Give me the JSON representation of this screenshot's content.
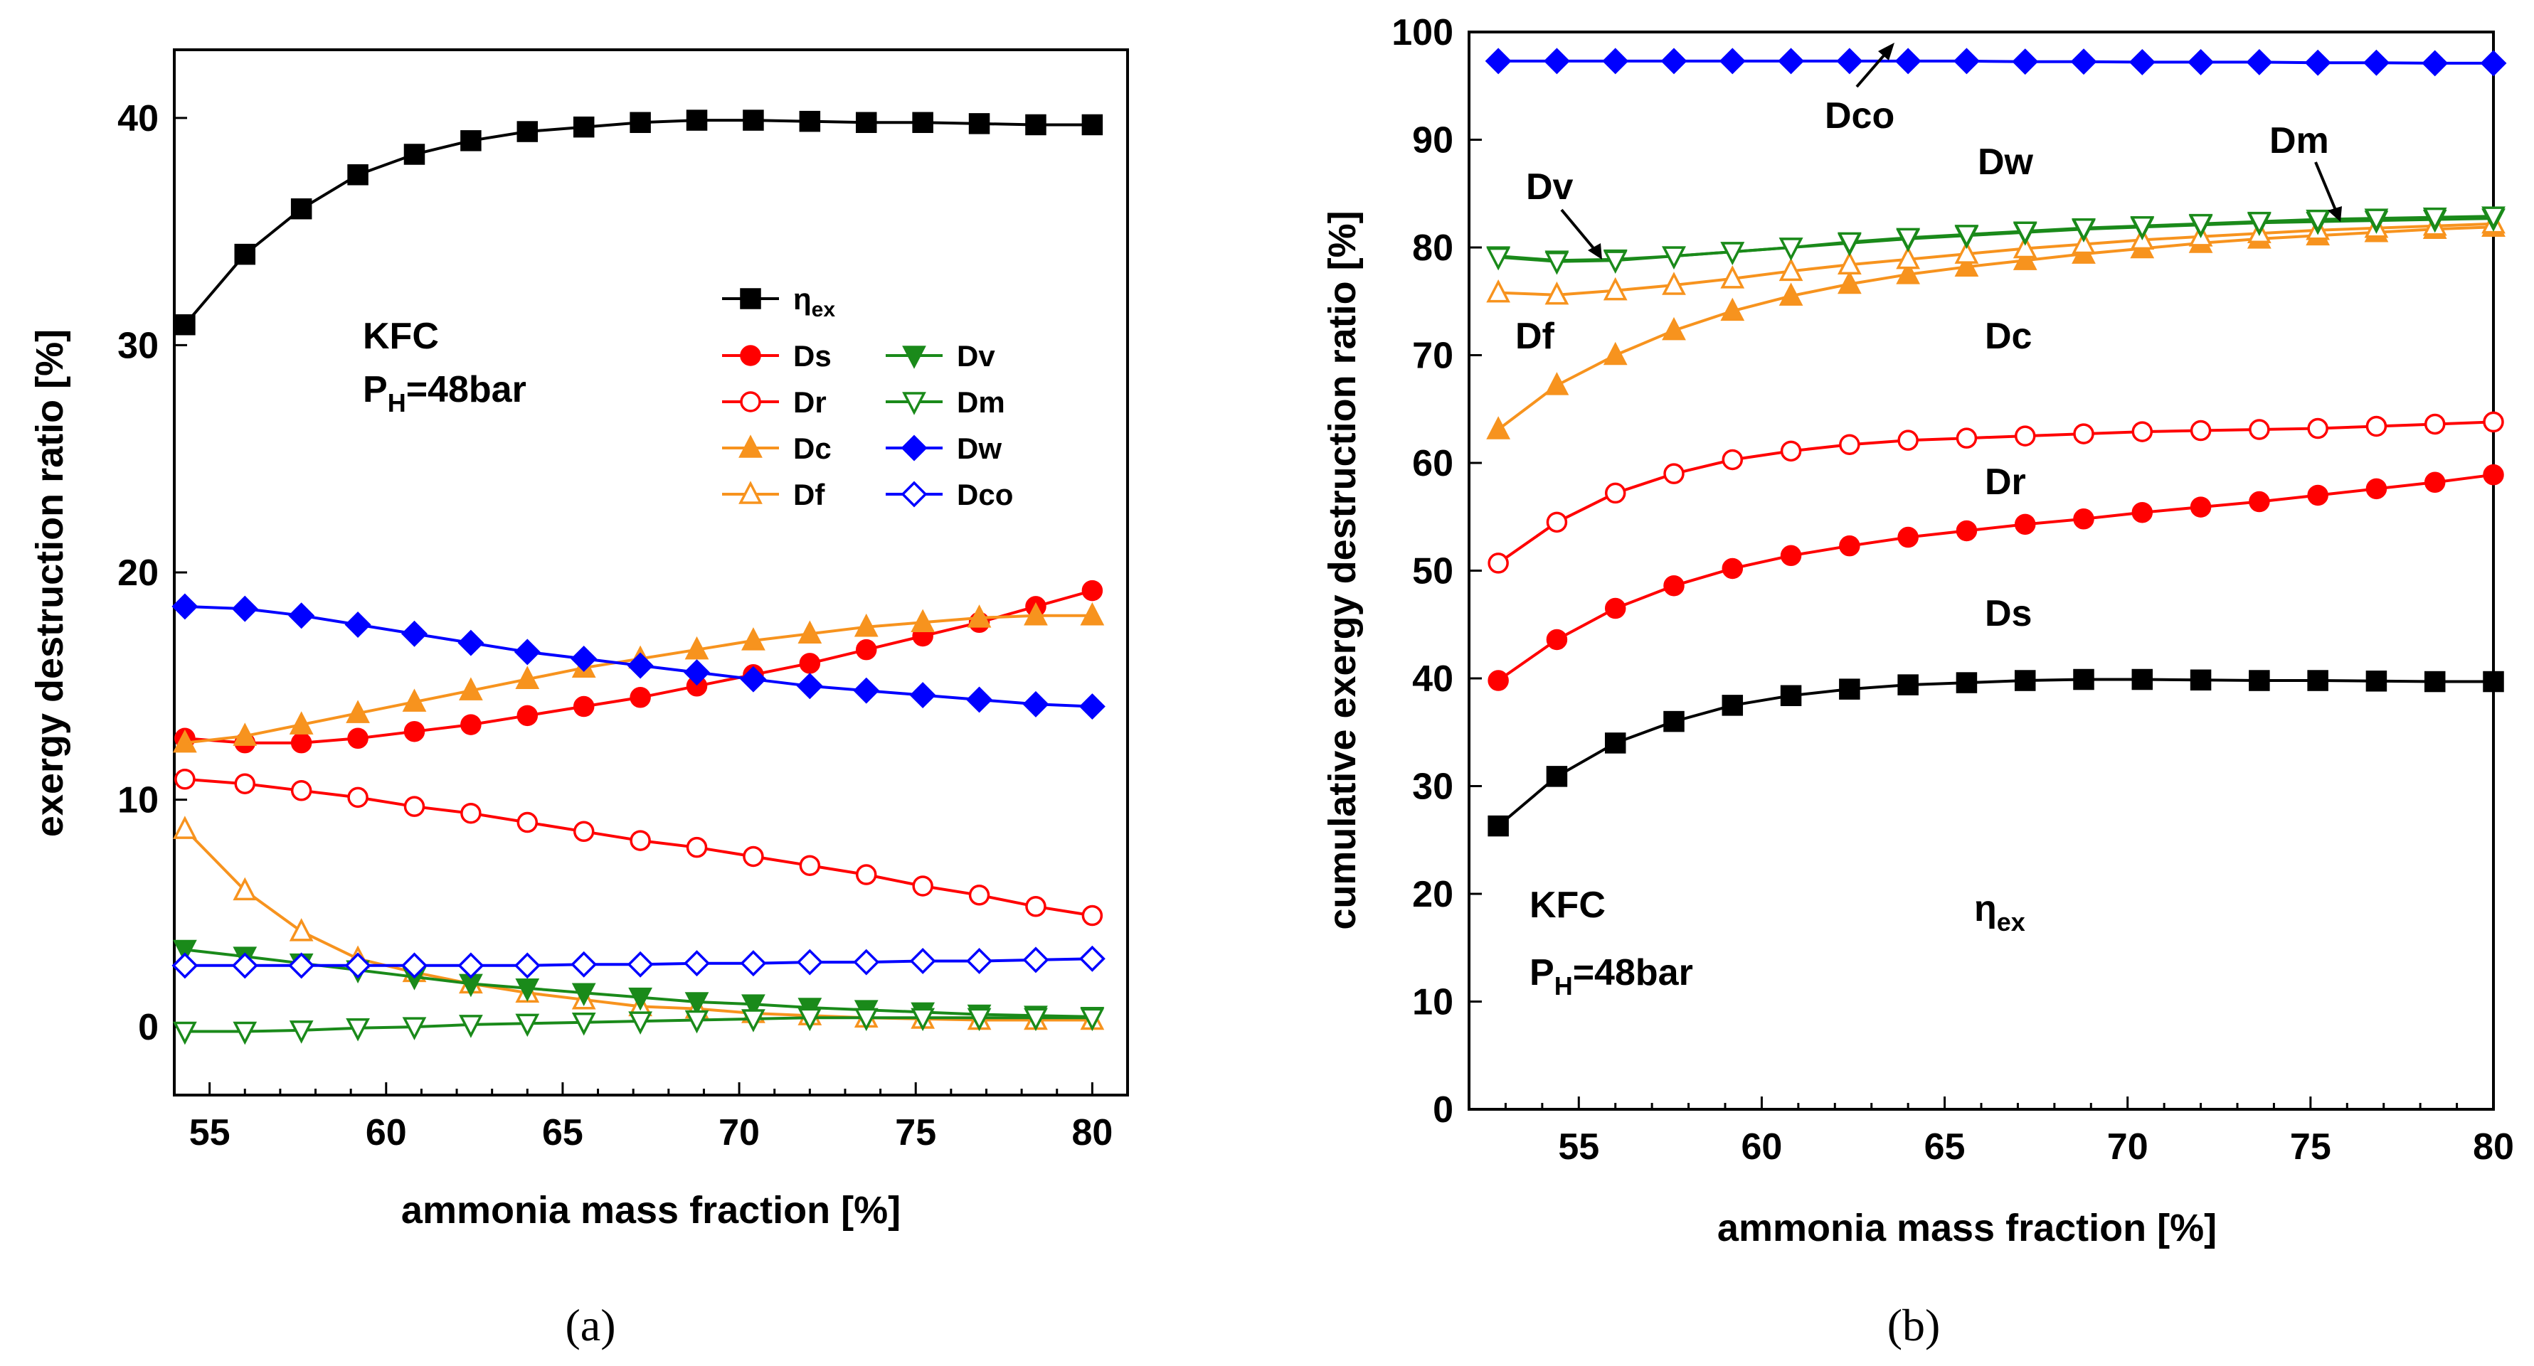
{
  "chart_data": [
    {
      "id": "a",
      "type": "line",
      "caption": "(a)",
      "xlabel": "ammonia mass fraction [%]",
      "ylabel": "exergy destruction ratio [%]",
      "xlim": [
        54,
        81
      ],
      "ylim": [
        -3,
        43
      ],
      "xticks": [
        55,
        60,
        65,
        70,
        75,
        80
      ],
      "yticks": [
        0,
        10,
        20,
        30,
        40
      ],
      "annotations": [
        "KFC",
        "P",
        "H",
        "=48bar"
      ],
      "legend": [
        {
          "label": "η",
          "sub": "ex",
          "series": "eta"
        },
        {
          "label": "Ds",
          "series": "Ds"
        },
        {
          "label": "Dr",
          "series": "Dr"
        },
        {
          "label": "Dc",
          "series": "Dc"
        },
        {
          "label": "Df",
          "series": "Df"
        },
        {
          "label": "Dv",
          "series": "Dv"
        },
        {
          "label": "Dm",
          "series": "Dm"
        },
        {
          "label": "Dw",
          "series": "Dw"
        },
        {
          "label": "Dco",
          "series": "Dco"
        }
      ],
      "x": [
        54.3,
        56.0,
        57.6,
        59.2,
        60.8,
        62.4,
        64.0,
        65.6,
        67.2,
        68.8,
        70.4,
        72.0,
        73.6,
        75.2,
        76.8,
        78.4,
        80.0
      ],
      "series": [
        {
          "name": "eta",
          "color": "#000000",
          "marker": "square",
          "filled": true,
          "values": [
            30.9,
            34.0,
            36.0,
            37.5,
            38.4,
            39.0,
            39.4,
            39.6,
            39.8,
            39.9,
            39.9,
            39.85,
            39.8,
            39.8,
            39.75,
            39.7,
            39.7
          ]
        },
        {
          "name": "Ds",
          "color": "#ff0000",
          "marker": "circle",
          "filled": true,
          "values": [
            12.7,
            12.5,
            12.5,
            12.7,
            13.0,
            13.3,
            13.7,
            14.1,
            14.5,
            15.0,
            15.5,
            16.0,
            16.6,
            17.2,
            17.8,
            18.5,
            19.2
          ]
        },
        {
          "name": "Dr",
          "color": "#ff0000",
          "marker": "circle",
          "filled": false,
          "values": [
            10.9,
            10.7,
            10.4,
            10.1,
            9.7,
            9.4,
            9.0,
            8.6,
            8.2,
            7.9,
            7.5,
            7.1,
            6.7,
            6.2,
            5.8,
            5.3,
            4.9
          ]
        },
        {
          "name": "Dc",
          "color": "#f7931e",
          "marker": "triangle",
          "filled": true,
          "values": [
            12.5,
            12.8,
            13.3,
            13.8,
            14.3,
            14.8,
            15.3,
            15.8,
            16.2,
            16.6,
            17.0,
            17.3,
            17.6,
            17.8,
            18.0,
            18.1,
            18.1
          ]
        },
        {
          "name": "Df",
          "color": "#f7931e",
          "marker": "triangle",
          "filled": false,
          "values": [
            8.7,
            6.0,
            4.2,
            3.0,
            2.4,
            1.9,
            1.5,
            1.2,
            0.9,
            0.8,
            0.6,
            0.5,
            0.4,
            0.35,
            0.3,
            0.3,
            0.3
          ]
        },
        {
          "name": "Dv",
          "color": "#1a8a1a",
          "marker": "triangle-down",
          "filled": true,
          "values": [
            3.4,
            3.1,
            2.8,
            2.5,
            2.2,
            1.9,
            1.7,
            1.5,
            1.3,
            1.1,
            1.0,
            0.85,
            0.75,
            0.65,
            0.55,
            0.5,
            0.45
          ]
        },
        {
          "name": "Dm",
          "color": "#1a8a1a",
          "marker": "triangle-down",
          "filled": false,
          "values": [
            -0.2,
            -0.2,
            -0.15,
            -0.05,
            0.0,
            0.1,
            0.15,
            0.2,
            0.25,
            0.3,
            0.35,
            0.4,
            0.4,
            0.4,
            0.4,
            0.4,
            0.4
          ]
        },
        {
          "name": "Dw",
          "color": "#0000ff",
          "marker": "diamond",
          "filled": true,
          "values": [
            18.5,
            18.4,
            18.1,
            17.7,
            17.3,
            16.9,
            16.5,
            16.2,
            15.9,
            15.6,
            15.3,
            15.0,
            14.8,
            14.6,
            14.4,
            14.2,
            14.1
          ]
        },
        {
          "name": "Dco",
          "color": "#0000ff",
          "marker": "diamond",
          "filled": false,
          "values": [
            2.7,
            2.7,
            2.7,
            2.7,
            2.7,
            2.7,
            2.7,
            2.75,
            2.75,
            2.8,
            2.8,
            2.85,
            2.85,
            2.9,
            2.9,
            2.95,
            3.0
          ]
        }
      ]
    },
    {
      "id": "b",
      "type": "line",
      "caption": "(b)",
      "xlabel": "ammonia mass fraction [%]",
      "ylabel": "cumulative exergy destruction ratio [%]",
      "xlim": [
        52,
        80
      ],
      "ylim": [
        0,
        100
      ],
      "xticks": [
        55,
        60,
        65,
        70,
        75,
        80
      ],
      "yticks": [
        0,
        10,
        20,
        30,
        40,
        50,
        60,
        70,
        80,
        90,
        100
      ],
      "annotations": [
        "KFC",
        "P",
        "H",
        "=48bar"
      ],
      "region_labels": [
        {
          "label": "Dco"
        },
        {
          "label": "Dw"
        },
        {
          "label": "Dm"
        },
        {
          "label": "Dv"
        },
        {
          "label": "Df"
        },
        {
          "label": "Dc"
        },
        {
          "label": "Dr"
        },
        {
          "label": "Ds"
        },
        {
          "label": "η",
          "sub": "ex"
        }
      ],
      "x": [
        52.8,
        54.4,
        56.0,
        57.6,
        59.2,
        60.8,
        62.4,
        64.0,
        65.6,
        67.2,
        68.8,
        70.4,
        72.0,
        73.6,
        75.2,
        76.8,
        78.4,
        80.0
      ],
      "series": [
        {
          "name": "eta",
          "color": "#000000",
          "marker": "square",
          "filled": true,
          "values": [
            26.3,
            30.9,
            34.0,
            36.0,
            37.5,
            38.4,
            39.0,
            39.4,
            39.6,
            39.8,
            39.9,
            39.9,
            39.85,
            39.8,
            39.8,
            39.75,
            39.7,
            39.7
          ]
        },
        {
          "name": "Ds",
          "color": "#ff0000",
          "marker": "circle",
          "filled": true,
          "values": [
            39.8,
            43.6,
            46.5,
            48.6,
            50.2,
            51.4,
            52.3,
            53.1,
            53.7,
            54.3,
            54.8,
            55.4,
            55.9,
            56.4,
            57.0,
            57.6,
            58.2,
            58.9
          ]
        },
        {
          "name": "Dr",
          "color": "#ff0000",
          "marker": "circle",
          "filled": false,
          "values": [
            50.7,
            54.5,
            57.2,
            59.0,
            60.3,
            61.1,
            61.7,
            62.1,
            62.3,
            62.5,
            62.7,
            62.9,
            63.0,
            63.1,
            63.2,
            63.4,
            63.6,
            63.8
          ]
        },
        {
          "name": "Dc",
          "color": "#f7931e",
          "marker": "triangle",
          "filled": true,
          "values": [
            63.1,
            67.2,
            70.0,
            72.3,
            74.1,
            75.5,
            76.6,
            77.5,
            78.2,
            78.8,
            79.4,
            79.9,
            80.4,
            80.8,
            81.1,
            81.4,
            81.7,
            81.9
          ]
        },
        {
          "name": "Df",
          "color": "#f7931e",
          "marker": "triangle",
          "filled": false,
          "values": [
            75.8,
            75.6,
            76.0,
            76.5,
            77.1,
            77.8,
            78.4,
            78.9,
            79.4,
            79.9,
            80.3,
            80.7,
            81.0,
            81.3,
            81.6,
            81.8,
            82.0,
            82.2
          ]
        },
        {
          "name": "Dv",
          "color": "#1a8a1a",
          "marker": "triangle-down",
          "filled": true,
          "values": [
            79.2,
            78.8,
            78.9,
            79.2,
            79.6,
            80.0,
            80.4,
            80.8,
            81.1,
            81.4,
            81.7,
            81.9,
            82.1,
            82.3,
            82.4,
            82.5,
            82.6,
            82.7
          ]
        },
        {
          "name": "Dm",
          "color": "#1a8a1a",
          "marker": "triangle-down",
          "filled": false,
          "values": [
            79.1,
            78.7,
            78.8,
            79.2,
            79.6,
            80.0,
            80.5,
            80.9,
            81.2,
            81.5,
            81.8,
            82.0,
            82.2,
            82.4,
            82.6,
            82.7,
            82.8,
            82.9
          ]
        },
        {
          "name": "Dw",
          "color": "#0000ff",
          "marker": "diamond",
          "filled": true,
          "values": [
            97.3,
            97.3,
            97.3,
            97.3,
            97.3,
            97.3,
            97.3,
            97.3,
            97.3,
            97.25,
            97.25,
            97.2,
            97.2,
            97.2,
            97.15,
            97.15,
            97.1,
            97.1
          ]
        }
      ]
    }
  ]
}
